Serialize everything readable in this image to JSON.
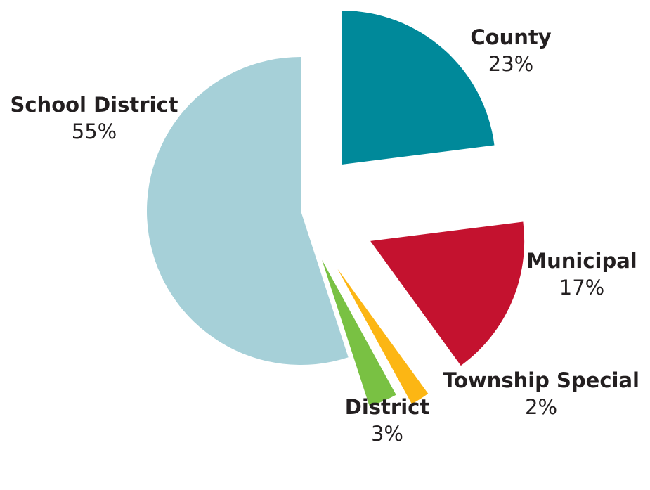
{
  "chart_data": {
    "type": "pie",
    "exploded": true,
    "slices": [
      {
        "label": "County",
        "value_label": "23%",
        "value": 23,
        "color": "#00899a"
      },
      {
        "label": "Municipal",
        "value_label": "17%",
        "value": 17,
        "color": "#c4122f"
      },
      {
        "label": "Township Special",
        "value_label": "2%",
        "value": 2,
        "color": "#fcb614"
      },
      {
        "label": "District",
        "value_label": "3%",
        "value": 3,
        "color": "#79c143"
      },
      {
        "label": "School District",
        "value_label": "55%",
        "value": 55,
        "color": "#a6d0d8"
      }
    ]
  }
}
